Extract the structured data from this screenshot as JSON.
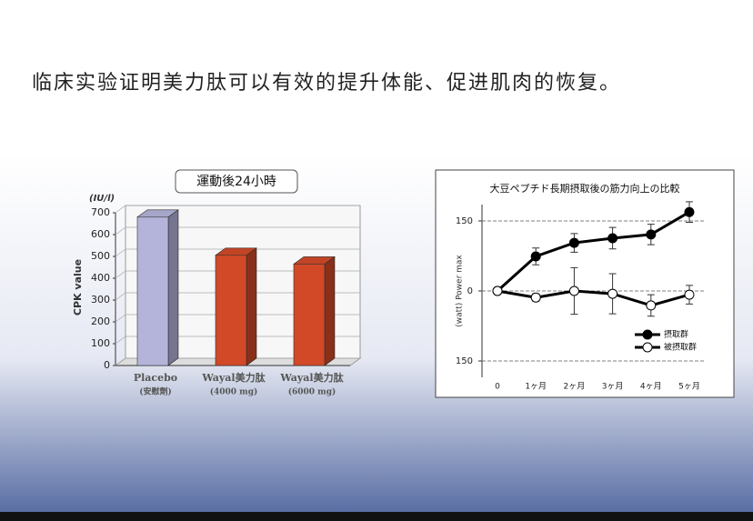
{
  "heading": "临床实验证明美力肽可以有效的提升体能、促进肌肉的恢复。",
  "chart_data": [
    {
      "type": "bar",
      "title": "運動後24小時",
      "y_unit": "(IU/l)",
      "ylabel": "CPK value",
      "categories": [
        "Placebo",
        "Wayal美力肽",
        "Wayal美力肽"
      ],
      "category_notes": [
        "(安慰劑)",
        "(4000 mg)",
        "(6000 mg)"
      ],
      "values": [
        680,
        505,
        465
      ],
      "colors": [
        "#c4c4ee",
        "#e4502c",
        "#e4502c"
      ],
      "ylim": [
        0,
        700
      ],
      "yticks": [
        0,
        100,
        200,
        300,
        400,
        500,
        600,
        700
      ],
      "grid": true
    },
    {
      "type": "line",
      "title": "大豆ペプチド長期摂取後の筋力向上の比較",
      "ylabel": "(watt) Power max",
      "categories": [
        "0",
        "1ヶ月",
        "2ヶ月",
        "3ヶ月",
        "4ヶ月",
        "5ヶ月"
      ],
      "ylim": [
        -185,
        185
      ],
      "yticks": [
        {
          "value": -150,
          "label": "150"
        },
        0,
        150
      ],
      "grid": true,
      "legend": "lower right",
      "series": [
        {
          "name": "摂取群",
          "color": "#000000",
          "marker_fill": "#000000",
          "values": [
            0,
            74,
            103,
            113,
            121,
            169
          ],
          "errors": [
            0,
            18,
            20,
            23,
            22,
            22
          ]
        },
        {
          "name": "被摂取群",
          "color": "#000000",
          "marker_fill": "#ffffff",
          "values": [
            0,
            -14,
            0,
            -6,
            -31,
            -8
          ],
          "errors": [
            0,
            8,
            50,
            43,
            23,
            20
          ]
        }
      ]
    }
  ]
}
